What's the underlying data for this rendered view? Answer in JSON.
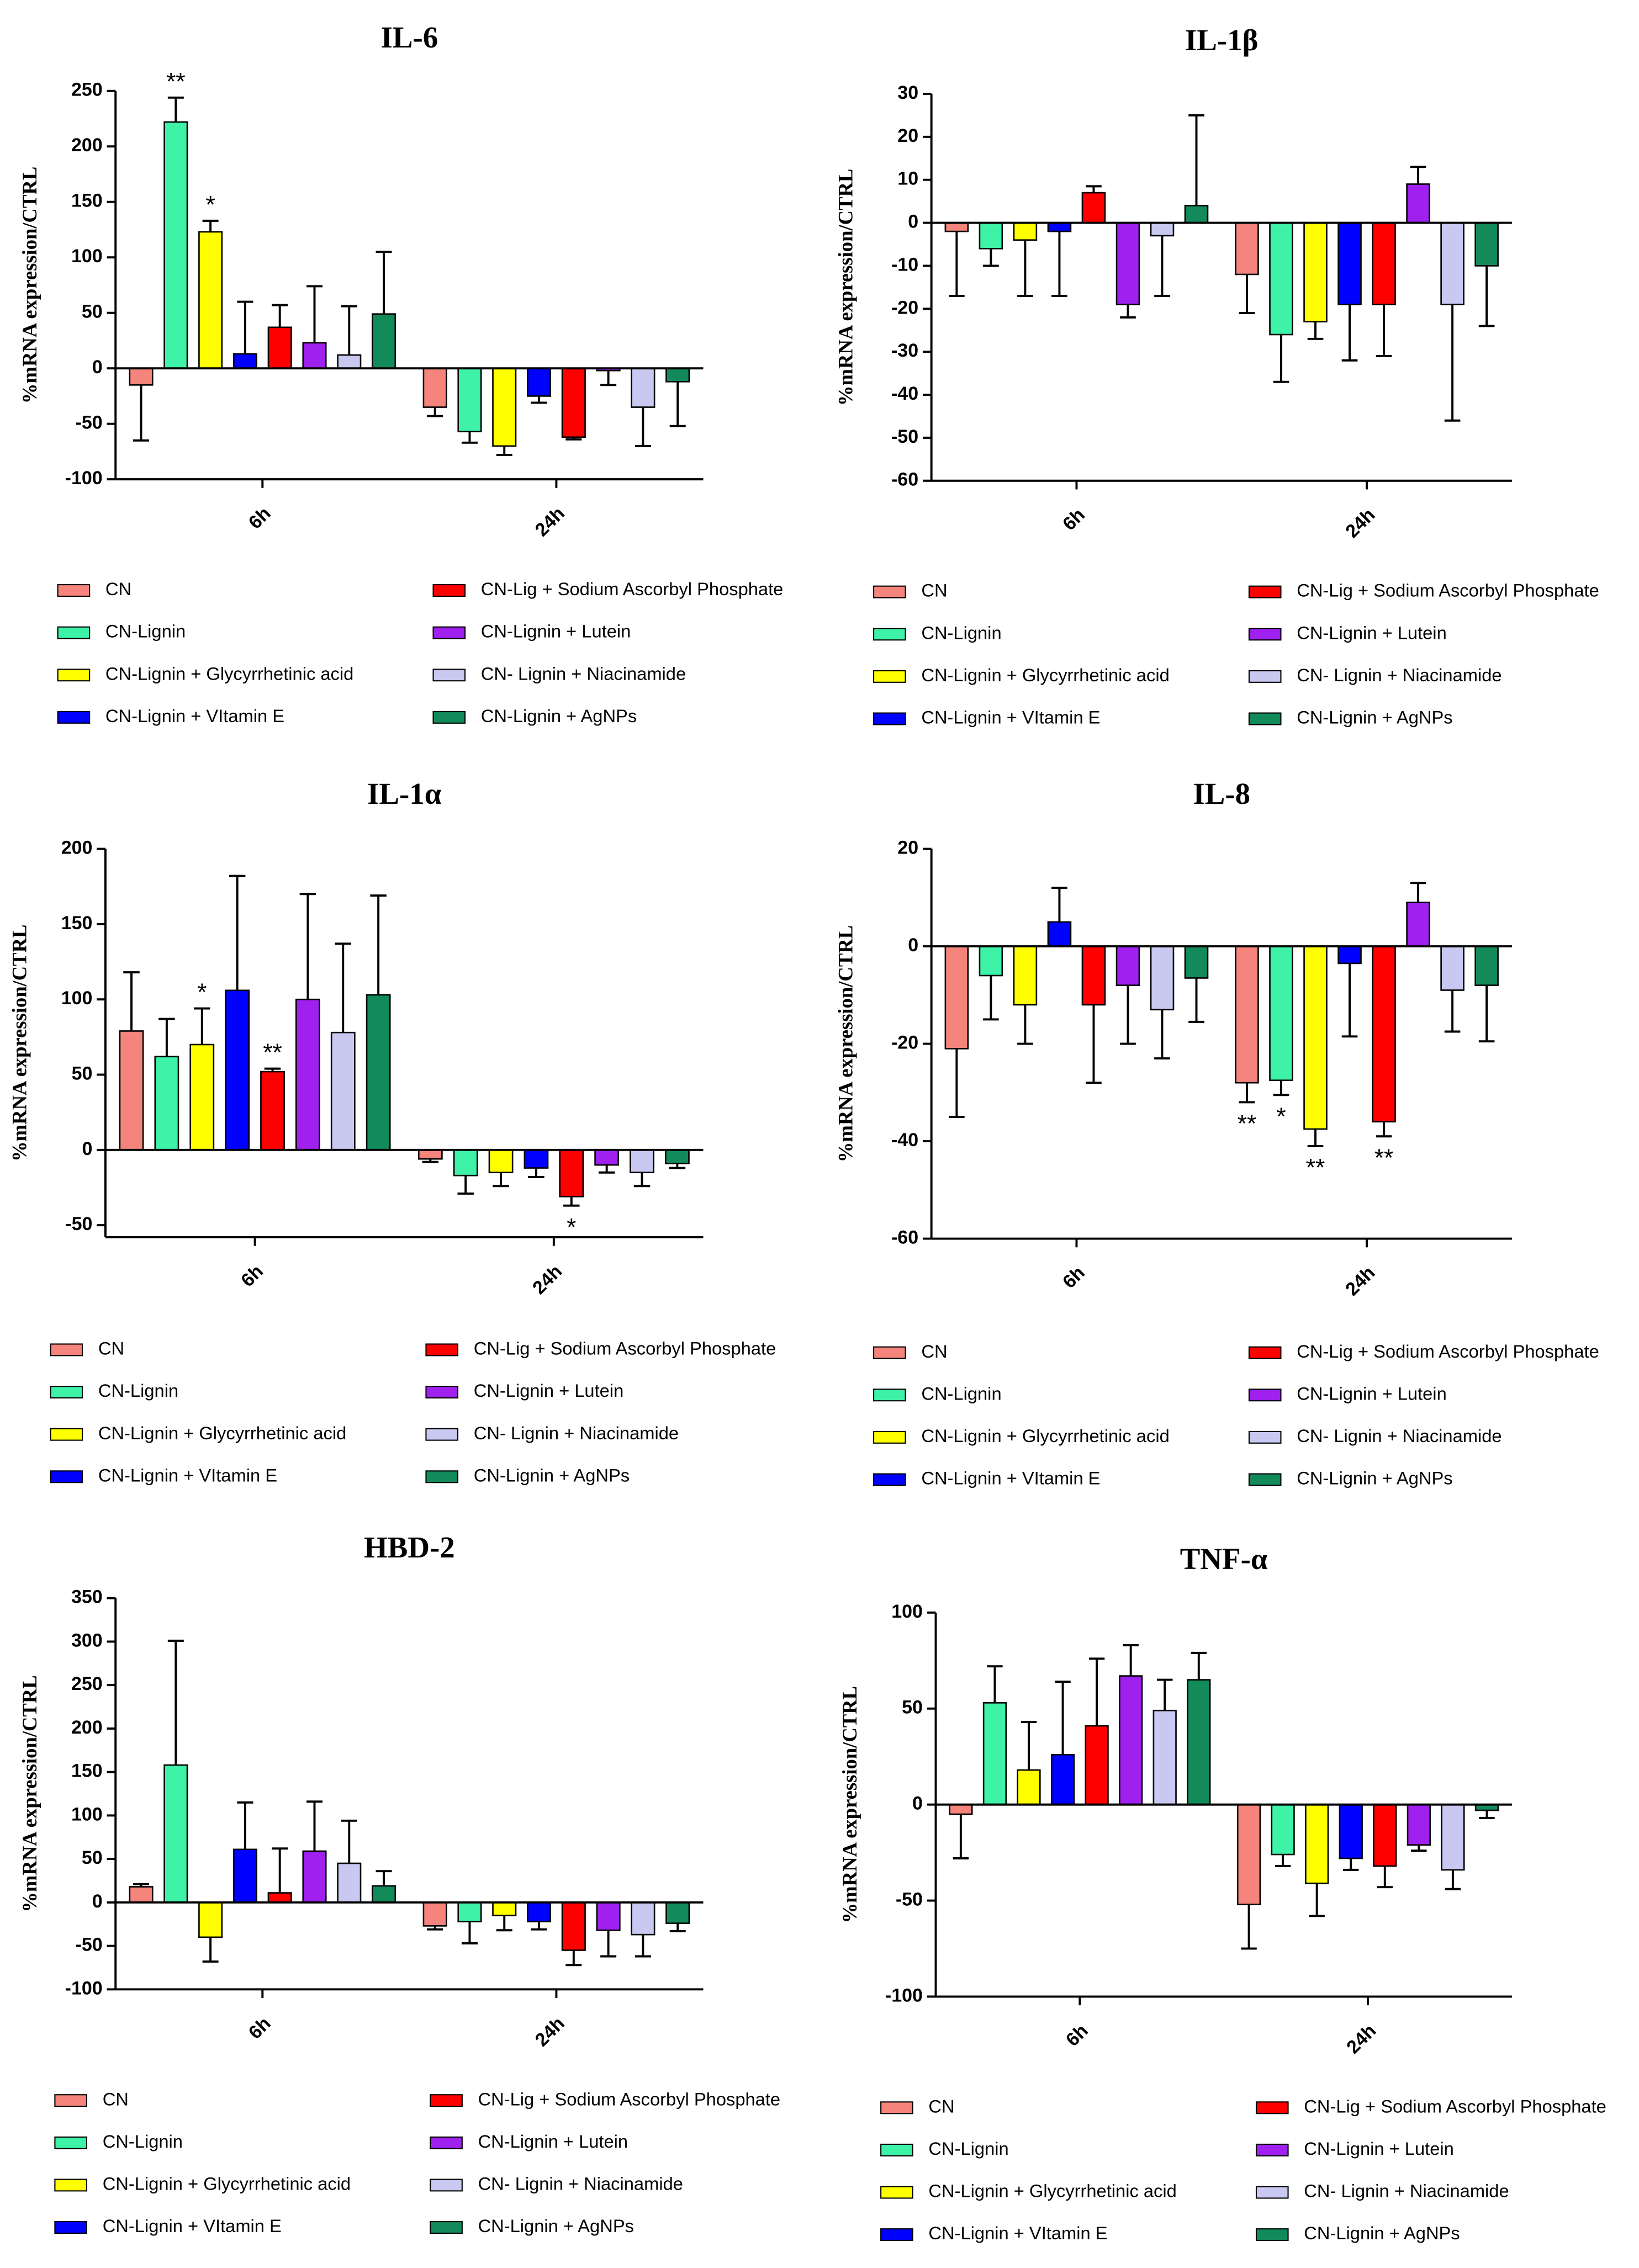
{
  "chart_data": [
    {
      "type": "bar",
      "title": "IL-6",
      "y_label": "%mRNA expression/CTRL",
      "categories": [
        "6h",
        "24h"
      ],
      "ylim": [
        -100,
        250
      ],
      "yticks": [
        -100,
        -50,
        0,
        50,
        100,
        150,
        200,
        250
      ],
      "series": [
        {
          "name": "CN",
          "color": "#f4847c",
          "values": [
            -15,
            -35
          ],
          "errors": [
            50,
            8
          ],
          "significance": [
            null,
            null
          ]
        },
        {
          "name": "CN-Lignin",
          "color": "#3ef2a8",
          "values": [
            222,
            -57
          ],
          "errors": [
            22,
            10
          ],
          "significance": [
            "**",
            null
          ]
        },
        {
          "name": "CN-Lignin + Glycyrrhetinic acid",
          "color": "#ffff00",
          "values": [
            123,
            -70
          ],
          "errors": [
            10,
            8
          ],
          "significance": [
            "*",
            null
          ]
        },
        {
          "name": "CN-Lignin + VItamin E",
          "color": "#0000ff",
          "values": [
            13,
            -25
          ],
          "errors": [
            47,
            6
          ],
          "significance": [
            null,
            null
          ]
        },
        {
          "name": "CN-Lig + Sodium Ascorbyl Phosphate",
          "color": "#ff0000",
          "values": [
            37,
            -62
          ],
          "errors": [
            20,
            2
          ],
          "significance": [
            null,
            null
          ]
        },
        {
          "name": "CN-Lignin + Lutein",
          "color": "#a020f0",
          "values": [
            23,
            -2
          ],
          "errors": [
            51,
            13
          ],
          "significance": [
            null,
            null
          ]
        },
        {
          "name": "CN- Lignin + Niacinamide",
          "color": "#c8c8f0",
          "values": [
            12,
            -35
          ],
          "errors": [
            44,
            35
          ],
          "significance": [
            null,
            null
          ]
        },
        {
          "name": "CN-Lignin + AgNPs",
          "color": "#128a5a",
          "values": [
            49,
            -12
          ],
          "errors": [
            56,
            40
          ],
          "significance": [
            null,
            null
          ]
        }
      ]
    },
    {
      "type": "bar",
      "title": "IL-1β",
      "y_label": "%mRNA expression/CTRL",
      "categories": [
        "6h",
        "24h"
      ],
      "ylim": [
        -60,
        30
      ],
      "yticks": [
        -60,
        -50,
        -40,
        -30,
        -20,
        -10,
        0,
        10,
        20,
        30
      ],
      "series": [
        {
          "name": "CN",
          "color": "#f4847c",
          "values": [
            -2,
            -12
          ],
          "errors": [
            15,
            9
          ],
          "significance": [
            null,
            null
          ]
        },
        {
          "name": "CN-Lignin",
          "color": "#3ef2a8",
          "values": [
            -6,
            -26
          ],
          "errors": [
            4,
            11
          ],
          "significance": [
            null,
            null
          ]
        },
        {
          "name": "CN-Lignin + Glycyrrhetinic acid",
          "color": "#ffff00",
          "values": [
            -4,
            -23
          ],
          "errors": [
            13,
            4
          ],
          "significance": [
            null,
            null
          ]
        },
        {
          "name": "CN-Lignin + VItamin E",
          "color": "#0000ff",
          "values": [
            -2,
            -19
          ],
          "errors": [
            15,
            13
          ],
          "significance": [
            null,
            null
          ]
        },
        {
          "name": "CN-Lig + Sodium Ascorbyl Phosphate",
          "color": "#ff0000",
          "values": [
            7,
            -19
          ],
          "errors": [
            1.5,
            12
          ],
          "significance": [
            null,
            null
          ]
        },
        {
          "name": "CN-Lignin + Lutein",
          "color": "#a020f0",
          "values": [
            -19,
            9
          ],
          "errors": [
            3,
            4
          ],
          "significance": [
            null,
            null
          ]
        },
        {
          "name": "CN- Lignin + Niacinamide",
          "color": "#c8c8f0",
          "values": [
            -3,
            -19
          ],
          "errors": [
            14,
            27
          ],
          "significance": [
            null,
            null
          ]
        },
        {
          "name": "CN-Lignin + AgNPs",
          "color": "#128a5a",
          "values": [
            4,
            -10
          ],
          "errors": [
            21,
            14
          ],
          "significance": [
            null,
            null
          ]
        }
      ]
    },
    {
      "type": "bar",
      "title": "IL-1α",
      "y_label": "%mRNA expression/CTRL",
      "categories": [
        "6h",
        "24h"
      ],
      "ylim": [
        -58,
        200
      ],
      "yticks": [
        -50,
        0,
        50,
        100,
        150,
        200
      ],
      "series": [
        {
          "name": "CN",
          "color": "#f4847c",
          "values": [
            79,
            -6
          ],
          "errors": [
            39,
            2
          ],
          "significance": [
            null,
            null
          ]
        },
        {
          "name": "CN-Lignin",
          "color": "#3ef2a8",
          "values": [
            62,
            -17
          ],
          "errors": [
            25,
            12
          ],
          "significance": [
            null,
            null
          ]
        },
        {
          "name": "CN-Lignin + Glycyrrhetinic acid",
          "color": "#ffff00",
          "values": [
            70,
            -15
          ],
          "errors": [
            24,
            9
          ],
          "significance": [
            "*",
            null
          ]
        },
        {
          "name": "CN-Lignin + VItamin E",
          "color": "#0000ff",
          "values": [
            106,
            -12
          ],
          "errors": [
            76,
            6
          ],
          "significance": [
            null,
            null
          ]
        },
        {
          "name": "CN-Lig + Sodium Ascorbyl Phosphate",
          "color": "#ff0000",
          "values": [
            52,
            -31
          ],
          "errors": [
            2,
            6
          ],
          "significance": [
            "**",
            "*"
          ]
        },
        {
          "name": "CN-Lignin + Lutein",
          "color": "#a020f0",
          "values": [
            100,
            -10
          ],
          "errors": [
            70,
            5
          ],
          "significance": [
            null,
            null
          ]
        },
        {
          "name": "CN- Lignin + Niacinamide",
          "color": "#c8c8f0",
          "values": [
            78,
            -15
          ],
          "errors": [
            59,
            9
          ],
          "significance": [
            null,
            null
          ]
        },
        {
          "name": "CN-Lignin + AgNPs",
          "color": "#128a5a",
          "values": [
            103,
            -9
          ],
          "errors": [
            66,
            3
          ],
          "significance": [
            null,
            null
          ]
        }
      ]
    },
    {
      "type": "bar",
      "title": "IL-8",
      "y_label": "%mRNA expression/CTRL",
      "categories": [
        "6h",
        "24h"
      ],
      "ylim": [
        -60,
        20
      ],
      "yticks": [
        -60,
        -40,
        -20,
        0,
        20
      ],
      "series": [
        {
          "name": "CN",
          "color": "#f4847c",
          "values": [
            -21,
            -28
          ],
          "errors": [
            14,
            4
          ],
          "significance": [
            null,
            "**"
          ]
        },
        {
          "name": "CN-Lignin",
          "color": "#3ef2a8",
          "values": [
            -6,
            -27.5
          ],
          "errors": [
            9,
            3
          ],
          "significance": [
            null,
            "*"
          ]
        },
        {
          "name": "CN-Lignin + Glycyrrhetinic acid",
          "color": "#ffff00",
          "values": [
            -12,
            -37.5
          ],
          "errors": [
            8,
            3.5
          ],
          "significance": [
            null,
            "**"
          ]
        },
        {
          "name": "CN-Lignin + VItamin E",
          "color": "#0000ff",
          "values": [
            5,
            -3.5
          ],
          "errors": [
            7,
            15
          ],
          "significance": [
            null,
            null
          ]
        },
        {
          "name": "CN-Lig + Sodium Ascorbyl Phosphate",
          "color": "#ff0000",
          "values": [
            -12,
            -36
          ],
          "errors": [
            16,
            3
          ],
          "significance": [
            null,
            "**"
          ]
        },
        {
          "name": "CN-Lignin + Lutein",
          "color": "#a020f0",
          "values": [
            -8,
            9
          ],
          "errors": [
            12,
            4
          ],
          "significance": [
            null,
            null
          ]
        },
        {
          "name": "CN- Lignin + Niacinamide",
          "color": "#c8c8f0",
          "values": [
            -13,
            -9
          ],
          "errors": [
            10,
            8.5
          ],
          "significance": [
            null,
            null
          ]
        },
        {
          "name": "CN-Lignin + AgNPs",
          "color": "#128a5a",
          "values": [
            -6.5,
            -8
          ],
          "errors": [
            9,
            11.5
          ],
          "significance": [
            null,
            null
          ]
        }
      ]
    },
    {
      "type": "bar",
      "title": "HBD-2",
      "y_label": "%mRNA expression/CTRL",
      "categories": [
        "6h",
        "24h"
      ],
      "ylim": [
        -100,
        350
      ],
      "yticks": [
        -100,
        -50,
        0,
        50,
        100,
        150,
        200,
        250,
        300,
        350
      ],
      "series": [
        {
          "name": "CN",
          "color": "#f4847c",
          "values": [
            18,
            -27
          ],
          "errors": [
            3,
            4
          ],
          "significance": [
            null,
            null
          ]
        },
        {
          "name": "CN-Lignin",
          "color": "#3ef2a8",
          "values": [
            158,
            -22
          ],
          "errors": [
            143,
            25
          ],
          "significance": [
            null,
            null
          ]
        },
        {
          "name": "CN-Lignin + Glycyrrhetinic acid",
          "color": "#ffff00",
          "values": [
            -40,
            -15
          ],
          "errors": [
            28,
            17
          ],
          "significance": [
            null,
            null
          ]
        },
        {
          "name": "CN-Lignin + VItamin E",
          "color": "#0000ff",
          "values": [
            61,
            -22
          ],
          "errors": [
            54,
            9
          ],
          "significance": [
            null,
            null
          ]
        },
        {
          "name": "CN-Lig + Sodium Ascorbyl Phosphate",
          "color": "#ff0000",
          "values": [
            11,
            -55
          ],
          "errors": [
            51,
            17
          ],
          "significance": [
            null,
            null
          ]
        },
        {
          "name": "CN-Lignin + Lutein",
          "color": "#a020f0",
          "values": [
            59,
            -32
          ],
          "errors": [
            57,
            30
          ],
          "significance": [
            null,
            null
          ]
        },
        {
          "name": "CN- Lignin + Niacinamide",
          "color": "#c8c8f0",
          "values": [
            45,
            -37
          ],
          "errors": [
            49,
            25
          ],
          "significance": [
            null,
            null
          ]
        },
        {
          "name": "CN-Lignin + AgNPs",
          "color": "#128a5a",
          "values": [
            19,
            -24
          ],
          "errors": [
            17,
            9
          ],
          "significance": [
            null,
            null
          ]
        }
      ]
    },
    {
      "type": "bar",
      "title": "TNF-α",
      "y_label": "%mRNA expression/CTRL",
      "categories": [
        "6h",
        "24h"
      ],
      "ylim": [
        -100,
        100
      ],
      "yticks": [
        -100,
        -50,
        0,
        50,
        100
      ],
      "series": [
        {
          "name": "CN",
          "color": "#f4847c",
          "values": [
            -5,
            -52
          ],
          "errors": [
            23,
            23
          ],
          "significance": [
            null,
            null
          ]
        },
        {
          "name": "CN-Lignin",
          "color": "#3ef2a8",
          "values": [
            53,
            -26
          ],
          "errors": [
            19,
            6
          ],
          "significance": [
            null,
            null
          ]
        },
        {
          "name": "CN-Lignin + Glycyrrhetinic acid",
          "color": "#ffff00",
          "values": [
            18,
            -41
          ],
          "errors": [
            25,
            17
          ],
          "significance": [
            null,
            null
          ]
        },
        {
          "name": "CN-Lignin + VItamin E",
          "color": "#0000ff",
          "values": [
            26,
            -28
          ],
          "errors": [
            38,
            6
          ],
          "significance": [
            null,
            null
          ]
        },
        {
          "name": "CN-Lig + Sodium Ascorbyl Phosphate",
          "color": "#ff0000",
          "values": [
            41,
            -32
          ],
          "errors": [
            35,
            11
          ],
          "significance": [
            null,
            null
          ]
        },
        {
          "name": "CN-Lignin + Lutein",
          "color": "#a020f0",
          "values": [
            67,
            -21
          ],
          "errors": [
            16,
            3
          ],
          "significance": [
            null,
            null
          ]
        },
        {
          "name": "CN- Lignin + Niacinamide",
          "color": "#c8c8f0",
          "values": [
            49,
            -34
          ],
          "errors": [
            16,
            10
          ],
          "significance": [
            null,
            null
          ]
        },
        {
          "name": "CN-Lignin + AgNPs",
          "color": "#128a5a",
          "values": [
            65,
            -3
          ],
          "errors": [
            14,
            4
          ],
          "significance": [
            null,
            null
          ]
        }
      ]
    }
  ]
}
